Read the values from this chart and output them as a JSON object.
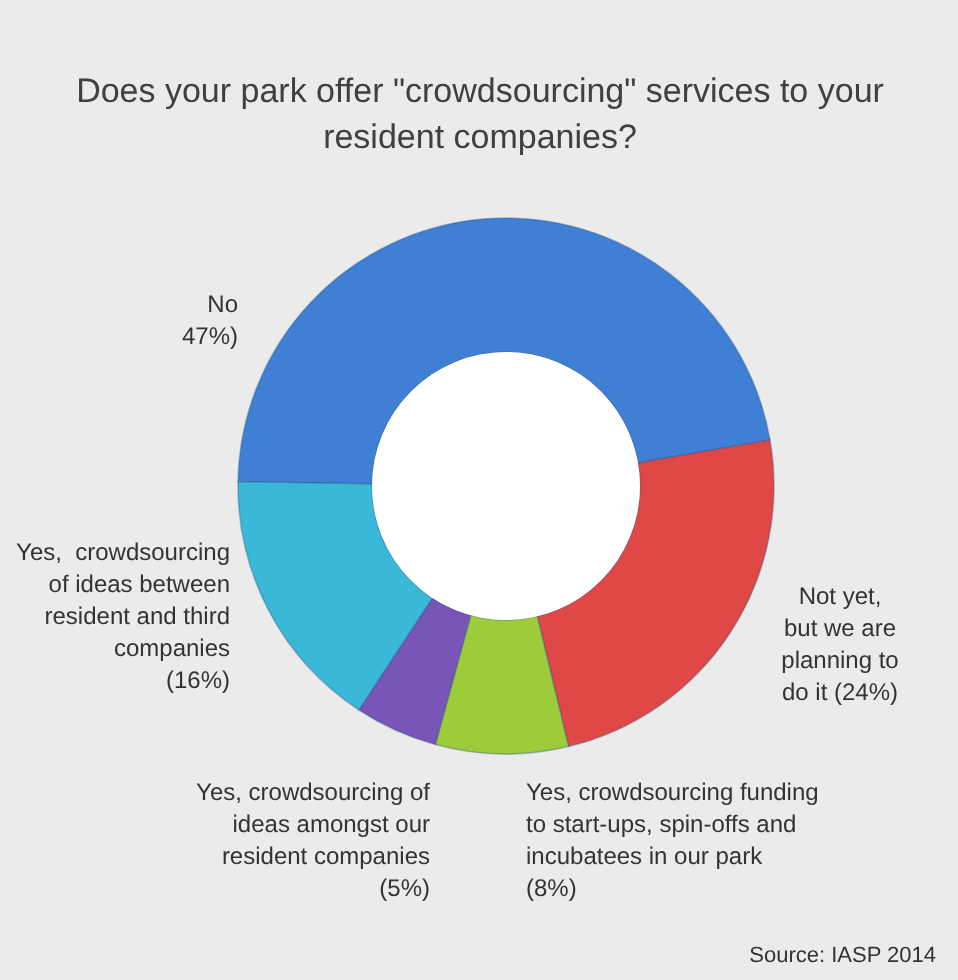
{
  "chart_data": {
    "type": "donut",
    "title": "Does your park offer \"crowdsourcing\" services to your resident companies?",
    "categories": [
      "No",
      "Not yet,\nbut we are\nplanning to\ndo it",
      "Yes, crowdsourcing funding\nto start-ups, spin-offs and\nincubatees in our park",
      "Yes, crowdsourcing of\nideas amongst our\nresident companies",
      "Yes,  crowdsourcing\nof ideas between\nresident and third\ncompanies"
    ],
    "values": [
      47,
      24,
      8,
      5,
      16
    ],
    "value_labels": [
      "47%)",
      "(24%)",
      "(8%)",
      "(5%)",
      "(16%)"
    ],
    "colors": [
      "#3f80d4",
      "#e04848",
      "#9ccc3a",
      "#7a55b8",
      "#3ab8d8"
    ],
    "annotations": [
      "Source: IASP 2014"
    ]
  }
}
